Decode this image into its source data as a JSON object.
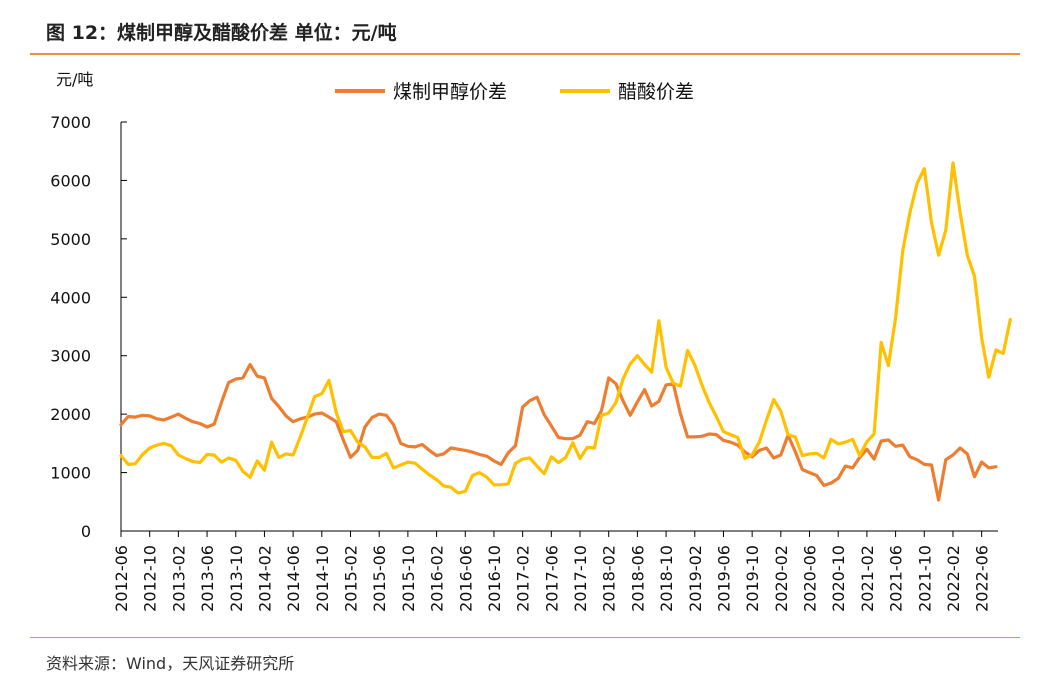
{
  "header": {
    "title": "图 12：煤制甲醇及醋酸价差 单位：元/吨"
  },
  "footer": {
    "source": "资料来源：Wind，天风证券研究所"
  },
  "chart_data": {
    "type": "line",
    "title": "煤制甲醇及醋酸价差",
    "ylabel": "元/吨",
    "xlabel": "",
    "ylim": [
      0,
      7000
    ],
    "yticks": [
      0,
      1000,
      2000,
      3000,
      4000,
      5000,
      6000,
      7000
    ],
    "legend_position": "top-center",
    "x_start": "2012-06",
    "x_end": "2022-06",
    "xtick_labels": [
      "2012-06",
      "2012-10",
      "2013-02",
      "2013-06",
      "2013-10",
      "2014-02",
      "2014-06",
      "2014-10",
      "2015-02",
      "2015-06",
      "2015-10",
      "2016-02",
      "2016-06",
      "2016-10",
      "2017-02",
      "2017-06",
      "2017-10",
      "2018-02",
      "2018-06",
      "2018-10",
      "2019-02",
      "2019-06",
      "2019-10",
      "2020-02",
      "2020-06",
      "2020-10",
      "2021-02",
      "2021-06",
      "2021-10",
      "2022-02",
      "2022-06"
    ],
    "series": [
      {
        "name": "煤制甲醇价差",
        "color": "#ed7d31",
        "values": [
          1820,
          1960,
          1950,
          1980,
          1970,
          1920,
          1900,
          1950,
          2000,
          1930,
          1870,
          1840,
          1780,
          1830,
          2200,
          2540,
          2600,
          2620,
          2850,
          2650,
          2620,
          2270,
          2130,
          1970,
          1870,
          1920,
          1950,
          2000,
          2020,
          1950,
          1870,
          1560,
          1260,
          1380,
          1780,
          1940,
          2000,
          1980,
          1820,
          1500,
          1450,
          1440,
          1480,
          1380,
          1290,
          1320,
          1420,
          1400,
          1380,
          1350,
          1310,
          1280,
          1200,
          1140,
          1340,
          1460,
          2120,
          2230,
          2290,
          1990,
          1800,
          1600,
          1580,
          1580,
          1640,
          1870,
          1840,
          2060,
          2620,
          2520,
          2230,
          1980,
          2210,
          2420,
          2140,
          2220,
          2500,
          2520,
          2010,
          1610,
          1610,
          1620,
          1660,
          1650,
          1550,
          1520,
          1470,
          1350,
          1270,
          1380,
          1420,
          1250,
          1300,
          1640,
          1360,
          1050,
          1000,
          950,
          780,
          820,
          900,
          1110,
          1080,
          1260,
          1400,
          1230,
          1540,
          1560,
          1450,
          1470,
          1270,
          1220,
          1140,
          1130,
          530,
          1220,
          1300,
          1420,
          1320,
          930,
          1180,
          1080,
          1100
        ]
      },
      {
        "name": "醋酸价差",
        "color": "#ffc000",
        "values": [
          1290,
          1140,
          1150,
          1310,
          1420,
          1470,
          1500,
          1460,
          1300,
          1240,
          1190,
          1170,
          1310,
          1300,
          1180,
          1250,
          1210,
          1020,
          920,
          1200,
          1040,
          1520,
          1260,
          1320,
          1300,
          1610,
          1950,
          2300,
          2350,
          2580,
          2030,
          1700,
          1720,
          1520,
          1440,
          1260,
          1260,
          1330,
          1080,
          1130,
          1180,
          1160,
          1060,
          960,
          880,
          770,
          750,
          650,
          680,
          950,
          1000,
          920,
          790,
          790,
          810,
          1160,
          1230,
          1250,
          1110,
          980,
          1270,
          1170,
          1260,
          1510,
          1240,
          1430,
          1420,
          1980,
          2020,
          2200,
          2600,
          2860,
          3000,
          2850,
          2720,
          3600,
          2800,
          2530,
          2480,
          3090,
          2840,
          2500,
          2200,
          1960,
          1700,
          1650,
          1600,
          1240,
          1300,
          1520,
          1900,
          2250,
          2050,
          1650,
          1610,
          1290,
          1320,
          1330,
          1250,
          1570,
          1490,
          1520,
          1570,
          1290,
          1530,
          1660,
          3230,
          2830,
          3650,
          4800,
          5450,
          5950,
          6200,
          5280,
          4720,
          5150,
          6300,
          5450,
          4720,
          4360,
          3300,
          2630,
          3100,
          3040,
          3620
        ]
      }
    ]
  }
}
